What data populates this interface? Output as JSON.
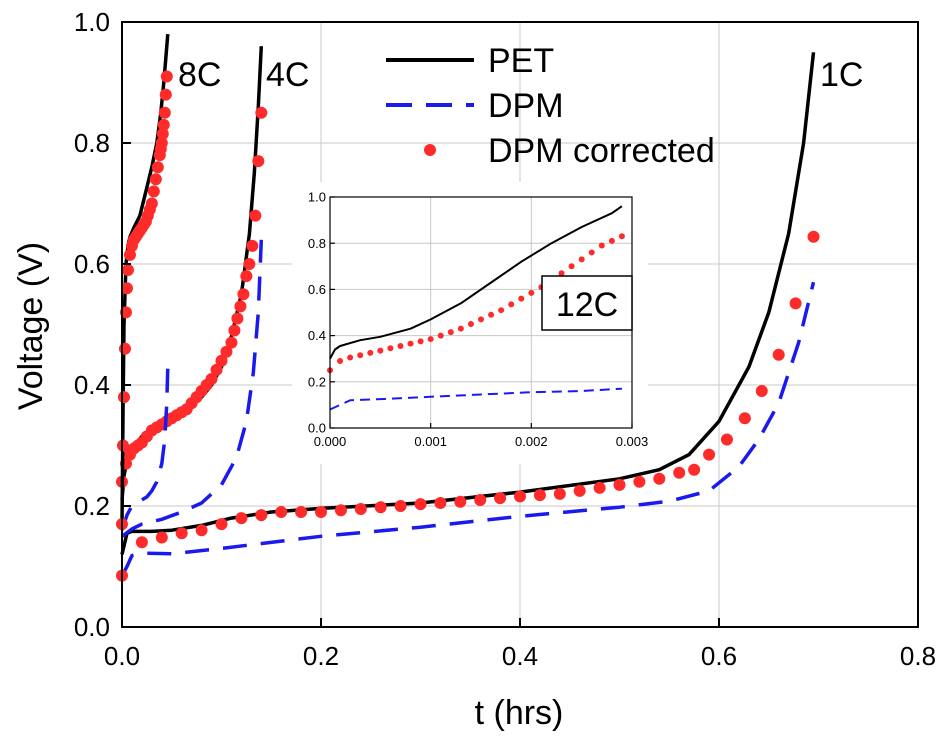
{
  "chart_data": [
    {
      "type": "line",
      "title": "",
      "xlabel": "t (hrs)",
      "ylabel": "Voltage (V)",
      "xlim": [
        0,
        0.8
      ],
      "ylim": [
        0,
        1.0
      ],
      "xticks": [
        "0.0",
        "0.2",
        "0.4",
        "0.6",
        "0.8"
      ],
      "yticks": [
        "0.0",
        "0.2",
        "0.4",
        "0.6",
        "0.8",
        "1.0"
      ],
      "grid": true,
      "legend": {
        "position": "top-center",
        "entries": [
          "PET",
          "DPM",
          "DPM corrected"
        ]
      },
      "annotations": [
        "8C",
        "4C",
        "1C"
      ],
      "series": [
        {
          "name": "PET",
          "style": "solid",
          "color": "#000000",
          "group": "1C",
          "x": [
            0,
            0.005,
            0.01,
            0.03,
            0.05,
            0.08,
            0.11,
            0.15,
            0.2,
            0.3,
            0.4,
            0.5,
            0.54,
            0.57,
            0.6,
            0.63,
            0.65,
            0.67,
            0.685,
            0.695
          ],
          "y": [
            0.12,
            0.155,
            0.158,
            0.158,
            0.16,
            0.168,
            0.18,
            0.19,
            0.196,
            0.205,
            0.223,
            0.245,
            0.26,
            0.285,
            0.34,
            0.43,
            0.52,
            0.65,
            0.8,
            0.95
          ]
        },
        {
          "name": "DPM",
          "style": "dashed",
          "color": "#1a1aee",
          "group": "1C",
          "x": [
            0,
            0.005,
            0.01,
            0.02,
            0.05,
            0.1,
            0.2,
            0.3,
            0.4,
            0.5,
            0.55,
            0.59,
            0.62,
            0.64,
            0.66,
            0.68,
            0.695
          ],
          "y": [
            0.085,
            0.1,
            0.118,
            0.122,
            0.121,
            0.13,
            0.15,
            0.165,
            0.183,
            0.198,
            0.208,
            0.225,
            0.265,
            0.31,
            0.37,
            0.47,
            0.57
          ]
        },
        {
          "name": "DPM corrected",
          "style": "markers",
          "color": "#ff2a2a",
          "group": "1C",
          "x": [
            0.0,
            0.02,
            0.04,
            0.06,
            0.08,
            0.1,
            0.12,
            0.14,
            0.16,
            0.18,
            0.2,
            0.22,
            0.24,
            0.26,
            0.28,
            0.3,
            0.32,
            0.34,
            0.36,
            0.38,
            0.4,
            0.42,
            0.44,
            0.46,
            0.48,
            0.5,
            0.52,
            0.54,
            0.56,
            0.575,
            0.59,
            0.608,
            0.626,
            0.643,
            0.66,
            0.677,
            0.695
          ],
          "y": [
            0.085,
            0.14,
            0.148,
            0.155,
            0.16,
            0.17,
            0.18,
            0.185,
            0.19,
            0.19,
            0.19,
            0.193,
            0.195,
            0.198,
            0.2,
            0.203,
            0.205,
            0.207,
            0.21,
            0.213,
            0.216,
            0.218,
            0.22,
            0.225,
            0.23,
            0.235,
            0.24,
            0.245,
            0.255,
            0.26,
            0.285,
            0.31,
            0.345,
            0.39,
            0.45,
            0.535,
            0.645
          ]
        },
        {
          "name": "PET",
          "style": "solid",
          "color": "#000000",
          "group": "4C",
          "x": [
            0,
            0.002,
            0.005,
            0.01,
            0.02,
            0.03,
            0.04,
            0.06,
            0.08,
            0.09,
            0.1,
            0.11,
            0.12,
            0.128,
            0.133,
            0.137,
            0.14
          ],
          "y": [
            0.21,
            0.25,
            0.275,
            0.295,
            0.315,
            0.33,
            0.34,
            0.355,
            0.38,
            0.4,
            0.43,
            0.48,
            0.55,
            0.65,
            0.75,
            0.86,
            0.96
          ]
        },
        {
          "name": "DPM",
          "style": "dashed",
          "color": "#1a1aee",
          "group": "4C",
          "x": [
            0,
            0.01,
            0.02,
            0.04,
            0.06,
            0.08,
            0.1,
            0.115,
            0.125,
            0.132,
            0.137,
            0.14
          ],
          "y": [
            0.15,
            0.162,
            0.17,
            0.178,
            0.19,
            0.205,
            0.235,
            0.28,
            0.34,
            0.42,
            0.52,
            0.64
          ]
        },
        {
          "name": "DPM corrected",
          "style": "markers",
          "color": "#ff2a2a",
          "group": "4C",
          "x": [
            0.0,
            0.004,
            0.008,
            0.012,
            0.016,
            0.02,
            0.025,
            0.03,
            0.035,
            0.04,
            0.045,
            0.05,
            0.055,
            0.06,
            0.065,
            0.07,
            0.075,
            0.08,
            0.085,
            0.09,
            0.095,
            0.1,
            0.105,
            0.11,
            0.113,
            0.116,
            0.119,
            0.122,
            0.125,
            0.128,
            0.131,
            0.134,
            0.137,
            0.14
          ],
          "y": [
            0.24,
            0.27,
            0.285,
            0.295,
            0.3,
            0.305,
            0.315,
            0.325,
            0.33,
            0.335,
            0.34,
            0.345,
            0.35,
            0.355,
            0.36,
            0.37,
            0.38,
            0.39,
            0.4,
            0.41,
            0.425,
            0.44,
            0.455,
            0.47,
            0.49,
            0.51,
            0.53,
            0.55,
            0.58,
            0.6,
            0.63,
            0.68,
            0.77,
            0.85
          ]
        },
        {
          "name": "PET",
          "style": "solid",
          "color": "#000000",
          "group": "8C",
          "x": [
            0,
            0.001,
            0.002,
            0.004,
            0.006,
            0.008,
            0.012,
            0.018,
            0.024,
            0.03,
            0.035,
            0.039,
            0.042,
            0.044,
            0.046
          ],
          "y": [
            0.17,
            0.35,
            0.5,
            0.6,
            0.63,
            0.645,
            0.66,
            0.68,
            0.72,
            0.76,
            0.8,
            0.85,
            0.9,
            0.94,
            0.98
          ]
        },
        {
          "name": "DPM",
          "style": "dashed",
          "color": "#1a1aee",
          "group": "8C",
          "x": [
            0,
            0.005,
            0.01,
            0.015,
            0.02,
            0.025,
            0.03,
            0.035,
            0.04,
            0.043,
            0.045,
            0.046
          ],
          "y": [
            0.16,
            0.185,
            0.2,
            0.205,
            0.21,
            0.215,
            0.225,
            0.24,
            0.27,
            0.31,
            0.37,
            0.43
          ]
        },
        {
          "name": "DPM corrected",
          "style": "markers",
          "color": "#ff2a2a",
          "group": "8C",
          "x": [
            0.0,
            0.001,
            0.002,
            0.003,
            0.004,
            0.005,
            0.006,
            0.008,
            0.01,
            0.012,
            0.014,
            0.016,
            0.018,
            0.02,
            0.022,
            0.024,
            0.026,
            0.028,
            0.03,
            0.032,
            0.034,
            0.036,
            0.038,
            0.039,
            0.04,
            0.041,
            0.042,
            0.043,
            0.044,
            0.045
          ],
          "y": [
            0.17,
            0.3,
            0.38,
            0.46,
            0.52,
            0.56,
            0.59,
            0.615,
            0.63,
            0.64,
            0.645,
            0.65,
            0.655,
            0.66,
            0.665,
            0.67,
            0.68,
            0.69,
            0.7,
            0.72,
            0.74,
            0.76,
            0.78,
            0.79,
            0.8,
            0.815,
            0.83,
            0.85,
            0.88,
            0.91
          ]
        }
      ]
    },
    {
      "type": "line",
      "title": "",
      "label": "12C",
      "xlabel": "",
      "ylabel": "",
      "xlim": [
        0,
        0.003
      ],
      "ylim": [
        0,
        1.0
      ],
      "xticks": [
        "0.000",
        "0.001",
        "0.002",
        "0.003"
      ],
      "yticks": [
        "0.0",
        "0.2",
        "0.4",
        "0.6",
        "0.8",
        "1.0"
      ],
      "grid": true,
      "series": [
        {
          "name": "PET",
          "style": "solid",
          "color": "#000000",
          "x": [
            0,
            5e-05,
            0.0001,
            0.0003,
            0.0005,
            0.0008,
            0.001,
            0.0013,
            0.0016,
            0.0019,
            0.0022,
            0.0025,
            0.0028,
            0.0029
          ],
          "y": [
            0.3,
            0.34,
            0.355,
            0.38,
            0.395,
            0.43,
            0.47,
            0.54,
            0.63,
            0.72,
            0.8,
            0.87,
            0.93,
            0.96
          ]
        },
        {
          "name": "DPM",
          "style": "dashed",
          "color": "#1a1aee",
          "x": [
            0,
            0.0001,
            0.0002,
            0.0005,
            0.001,
            0.0015,
            0.002,
            0.0025,
            0.0029
          ],
          "y": [
            0.08,
            0.1,
            0.12,
            0.125,
            0.135,
            0.145,
            0.155,
            0.16,
            0.17
          ]
        },
        {
          "name": "DPM corrected",
          "style": "markers",
          "color": "#ff2a2a",
          "x": [
            0.0,
            0.0001,
            0.0002,
            0.0003,
            0.0004,
            0.0005,
            0.0006,
            0.0007,
            0.0008,
            0.0009,
            0.001,
            0.0011,
            0.0012,
            0.0013,
            0.0014,
            0.0015,
            0.0016,
            0.0017,
            0.0018,
            0.0019,
            0.002,
            0.0021,
            0.0022,
            0.0023,
            0.0024,
            0.0025,
            0.0026,
            0.0027,
            0.0028,
            0.0029
          ],
          "y": [
            0.25,
            0.29,
            0.305,
            0.315,
            0.325,
            0.335,
            0.345,
            0.355,
            0.365,
            0.375,
            0.385,
            0.4,
            0.415,
            0.43,
            0.45,
            0.47,
            0.49,
            0.51,
            0.535,
            0.56,
            0.585,
            0.61,
            0.64,
            0.67,
            0.7,
            0.73,
            0.76,
            0.79,
            0.81,
            0.83
          ]
        }
      ]
    }
  ]
}
